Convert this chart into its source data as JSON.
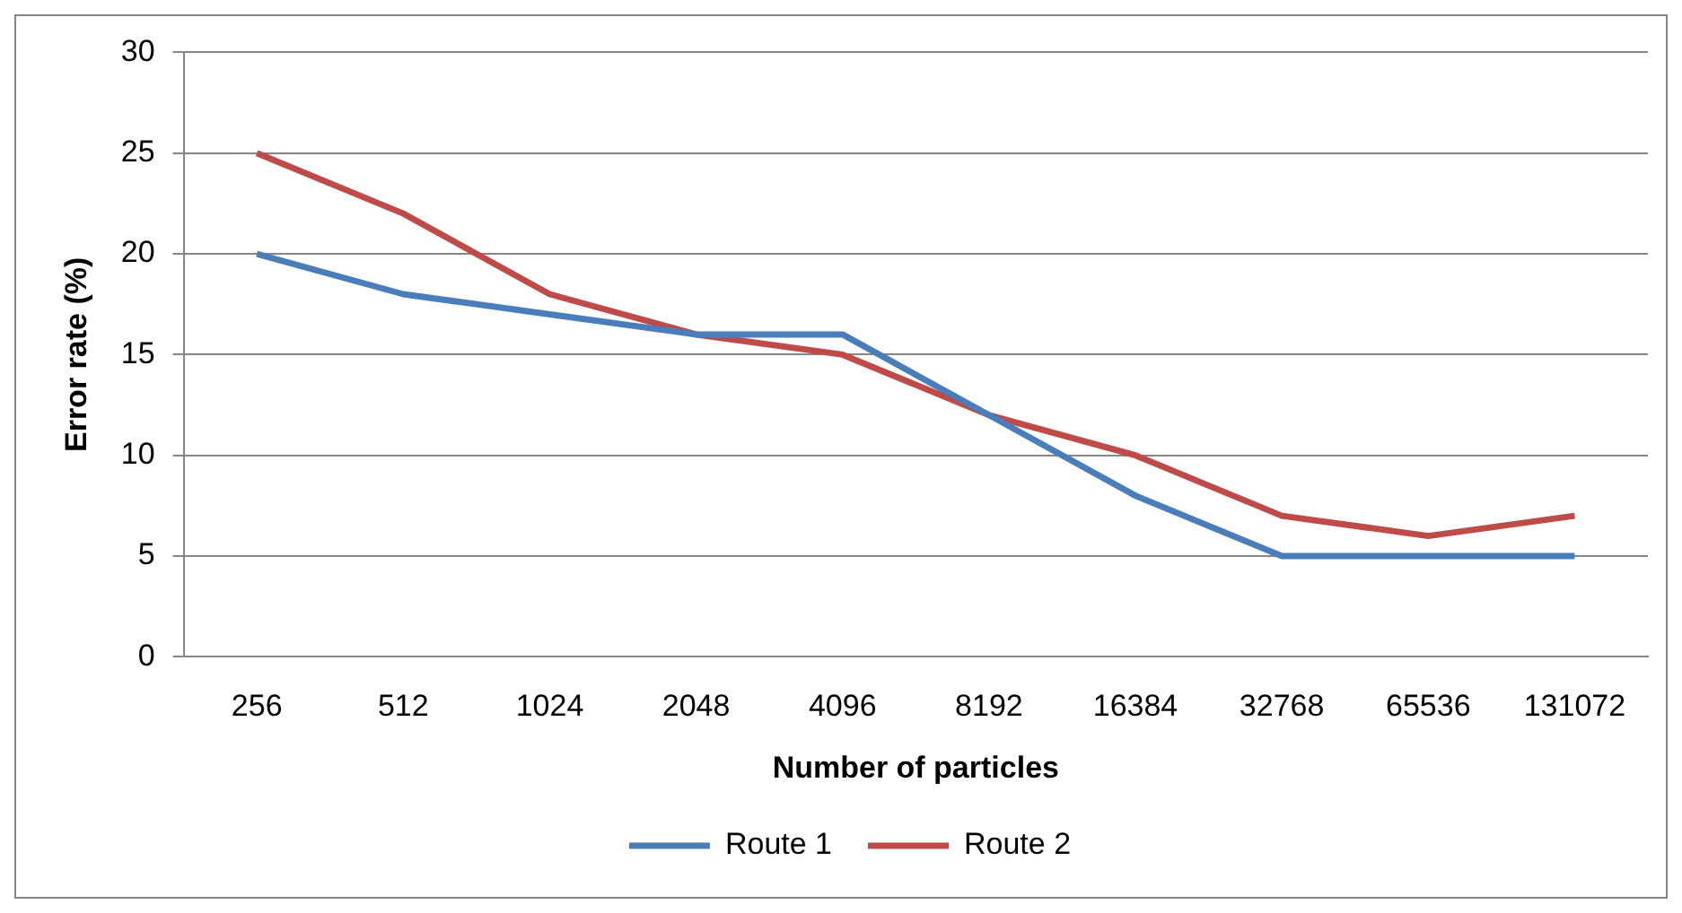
{
  "chart_data": {
    "type": "line",
    "xlabel": "Number of particles",
    "ylabel": "Error rate (%)",
    "categories": [
      "256",
      "512",
      "1024",
      "2048",
      "4096",
      "8192",
      "16384",
      "32768",
      "65536",
      "131072"
    ],
    "series": [
      {
        "name": "Route 1",
        "color": "#4a7ebb",
        "values": [
          20,
          18,
          17,
          16,
          16,
          12,
          8,
          5,
          5,
          5
        ]
      },
      {
        "name": "Route 2",
        "color": "#be4b48",
        "values": [
          25,
          22,
          18,
          16,
          15,
          12,
          10,
          7,
          6,
          7
        ]
      }
    ],
    "ylim": [
      0,
      30
    ],
    "yticks": [
      0,
      5,
      10,
      15,
      20,
      25,
      30
    ],
    "grid": "y",
    "legend": "bottom",
    "marker": "none",
    "line_style": "solid"
  }
}
